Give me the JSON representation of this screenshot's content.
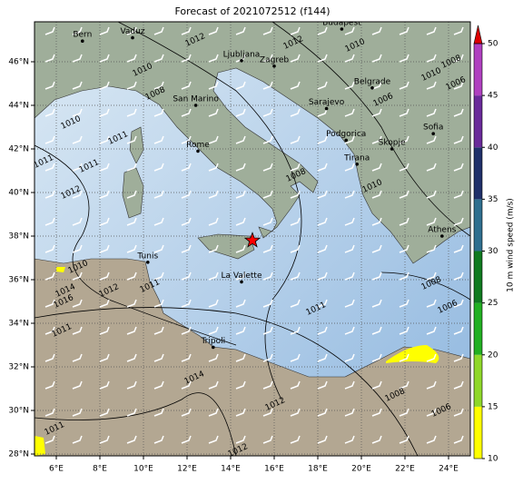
{
  "title": "Forecast of 2021072512 (f144)",
  "lon_ticks": [
    {
      "value": 6,
      "label": "6°E"
    },
    {
      "value": 8,
      "label": "8°E"
    },
    {
      "value": 10,
      "label": "10°E"
    },
    {
      "value": 12,
      "label": "12°E"
    },
    {
      "value": 14,
      "label": "14°E"
    },
    {
      "value": 16,
      "label": "16°E"
    },
    {
      "value": 18,
      "label": "18°E"
    },
    {
      "value": 20,
      "label": "20°E"
    },
    {
      "value": 22,
      "label": "22°E"
    },
    {
      "value": 24,
      "label": "24°E"
    }
  ],
  "lat_ticks": [
    {
      "value": 28,
      "label": "28°N"
    },
    {
      "value": 30,
      "label": "30°N"
    },
    {
      "value": 32,
      "label": "32°N"
    },
    {
      "value": 34,
      "label": "34°N"
    },
    {
      "value": 36,
      "label": "36°N"
    },
    {
      "value": 38,
      "label": "38°N"
    },
    {
      "value": 40,
      "label": "40°N"
    },
    {
      "value": 42,
      "label": "42°N"
    },
    {
      "value": 44,
      "label": "44°N"
    },
    {
      "value": 46,
      "label": "46°N"
    }
  ],
  "cities": [
    {
      "name": "Bern",
      "lon": 7.2,
      "lat": 46.95
    },
    {
      "name": "Vaduz",
      "lon": 9.5,
      "lat": 47.1
    },
    {
      "name": "Budapest",
      "lon": 19.1,
      "lat": 47.5
    },
    {
      "name": "Ljubljana",
      "lon": 14.5,
      "lat": 46.05
    },
    {
      "name": "Zagreb",
      "lon": 16.0,
      "lat": 45.8
    },
    {
      "name": "Belgrade",
      "lon": 20.5,
      "lat": 44.8
    },
    {
      "name": "San Marino",
      "lon": 12.4,
      "lat": 44.0
    },
    {
      "name": "Sarajevo",
      "lon": 18.4,
      "lat": 43.85
    },
    {
      "name": "Podgorica",
      "lon": 19.3,
      "lat": 42.4
    },
    {
      "name": "Skopje",
      "lon": 21.4,
      "lat": 42.0
    },
    {
      "name": "Sofia",
      "lon": 23.3,
      "lat": 42.7
    },
    {
      "name": "Tirana",
      "lon": 19.8,
      "lat": 41.3
    },
    {
      "name": "Rome",
      "lon": 12.5,
      "lat": 41.9
    },
    {
      "name": "Athens",
      "lon": 23.7,
      "lat": 38.0
    },
    {
      "name": "Tunis",
      "lon": 10.2,
      "lat": 36.8
    },
    {
      "name": "La Valette",
      "lon": 14.5,
      "lat": 35.9
    },
    {
      "name": "Tripoli",
      "lon": 13.2,
      "lat": 32.9
    }
  ],
  "marker": {
    "lon": 15.0,
    "lat": 37.8,
    "color": "#ff0000"
  },
  "isobar_labels": [
    "1012",
    "1012",
    "1010",
    "1010",
    "1008",
    "1010",
    "1011",
    "1011",
    "1011",
    "1012",
    "1008",
    "1010",
    "1008",
    "1006",
    "1010",
    "1006",
    "1010",
    "1012",
    "1014",
    "1016",
    "1011",
    "1011",
    "1011",
    "1008",
    "1006",
    "1014",
    "1012",
    "1008",
    "1006",
    "1011",
    "1012"
  ],
  "colorbar": {
    "label": "10 m wind speed (m/s)",
    "ticks": [
      10,
      15,
      20,
      25,
      30,
      35,
      40,
      45,
      50
    ],
    "colors": [
      "#ffff00",
      "#8fd82a",
      "#22b022",
      "#107a20",
      "#2f6f8f",
      "#20306a",
      "#6a2a9a",
      "#b040c0"
    ],
    "extend_color": "#dd0000"
  }
}
